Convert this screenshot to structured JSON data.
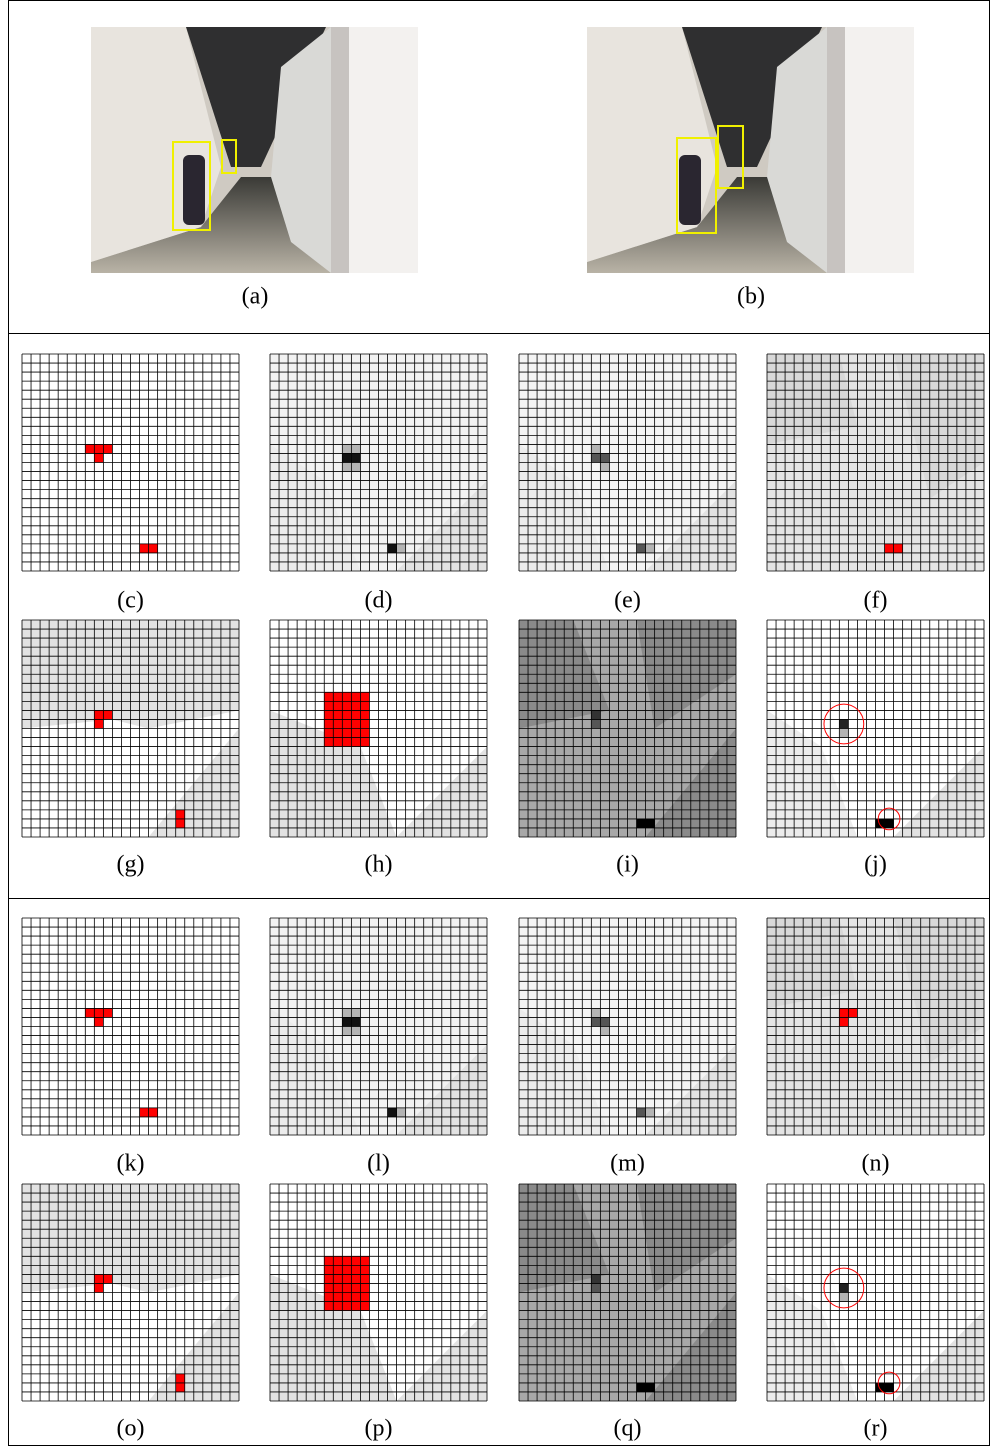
{
  "captions": [
    "(a)",
    "(b)",
    "(c)",
    "(d)",
    "(e)",
    "(f)",
    "(g)",
    "(h)",
    "(i)",
    "(j)",
    "(k)",
    "(l)",
    "(m)",
    "(n)",
    "(o)",
    "(p)",
    "(q)",
    "(r)"
  ]
}
